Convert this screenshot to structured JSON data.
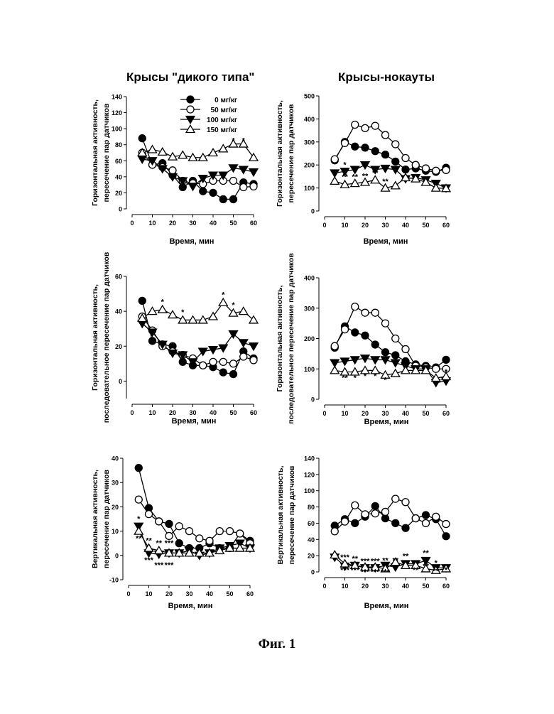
{
  "titles": {
    "left": "Крысы \"дикого типа\"",
    "right": "Крысы-нокауты"
  },
  "figure_caption": "Фиг. 1",
  "legend": [
    {
      "label": "0 мг/кг",
      "marker": "filled-circle"
    },
    {
      "label": "50 мг/кг",
      "marker": "open-circle"
    },
    {
      "label": "100 мг/кг",
      "marker": "filled-triangle-down"
    },
    {
      "label": "150 мг/кг",
      "marker": "open-triangle-up"
    }
  ],
  "chart_data": [
    {
      "id": "wt_horiz",
      "type": "line",
      "xlabel": "Время, мин",
      "ylabel": [
        "Горизонтальная активность,",
        "пересечение пар датчиков"
      ],
      "xlim": [
        0,
        60
      ],
      "ylim": [
        0,
        140
      ],
      "xticks": [
        0,
        10,
        20,
        30,
        40,
        50,
        60
      ],
      "yticks": [
        0,
        20,
        40,
        60,
        80,
        100,
        120,
        140
      ],
      "x": [
        5,
        10,
        15,
        20,
        25,
        30,
        35,
        40,
        45,
        50,
        55,
        60
      ],
      "series": [
        {
          "name": "0 мг/кг",
          "marker": "filled-circle",
          "values": [
            88,
            55,
            57,
            42,
            27,
            35,
            22,
            20,
            12,
            12,
            33,
            31
          ]
        },
        {
          "name": "50 мг/кг",
          "marker": "open-circle",
          "values": [
            70,
            55,
            52,
            48,
            35,
            32,
            31,
            35,
            35,
            35,
            27,
            28
          ]
        },
        {
          "name": "100 мг/кг",
          "marker": "filled-triangle-down",
          "values": [
            62,
            60,
            50,
            40,
            35,
            28,
            38,
            42,
            42,
            51,
            49,
            46
          ]
        },
        {
          "name": "150 мг/кг",
          "marker": "open-triangle-up",
          "values": [
            70,
            74,
            71,
            65,
            67,
            64,
            64,
            70,
            75,
            81,
            81,
            64
          ]
        }
      ],
      "annotations": [
        {
          "x": 50,
          "y": 82,
          "text": "*"
        },
        {
          "x": 55,
          "y": 82,
          "text": "*"
        }
      ]
    },
    {
      "id": "ko_horiz",
      "type": "line",
      "xlabel": "Время, мин",
      "ylabel": [
        "Горизонтальная активность,",
        "пересечение пар датчиков"
      ],
      "xlim": [
        0,
        60
      ],
      "ylim": [
        0,
        500
      ],
      "xticks": [
        0,
        10,
        20,
        30,
        40,
        50,
        60
      ],
      "yticks": [
        0,
        100,
        200,
        300,
        400,
        500
      ],
      "x": [
        5,
        10,
        15,
        20,
        25,
        30,
        35,
        40,
        45,
        50,
        55,
        60
      ],
      "series": [
        {
          "name": "0 мг/кг",
          "marker": "filled-circle",
          "values": [
            220,
            300,
            280,
            275,
            260,
            245,
            215,
            180,
            185,
            175,
            170,
            188
          ]
        },
        {
          "name": "50 мг/кг",
          "marker": "open-circle",
          "values": [
            225,
            295,
            375,
            360,
            370,
            330,
            290,
            230,
            200,
            185,
            175,
            178
          ]
        },
        {
          "name": "100 мг/кг",
          "marker": "filled-triangle-down",
          "values": [
            165,
            172,
            180,
            200,
            180,
            185,
            180,
            140,
            145,
            135,
            120,
            100
          ]
        },
        {
          "name": "150 мг/кг",
          "marker": "open-triangle-up",
          "values": [
            130,
            115,
            120,
            125,
            135,
            100,
            110,
            145,
            140,
            125,
            100,
            98
          ]
        }
      ],
      "annotations": [
        {
          "x": 10,
          "y": 190,
          "text": "*"
        },
        {
          "x": 10,
          "y": 138,
          "text": "**"
        },
        {
          "x": 15,
          "y": 138,
          "text": "**"
        },
        {
          "x": 20,
          "y": 140,
          "text": "**"
        },
        {
          "x": 25,
          "y": 155,
          "text": "**"
        },
        {
          "x": 30,
          "y": 118,
          "text": "**"
        }
      ]
    },
    {
      "id": "wt_horiz_consec",
      "type": "line",
      "xlabel": "Время, мин",
      "ylabel": [
        "Горизонтальная активность,",
        "последовательное пересечение пар датчиков"
      ],
      "xlim": [
        0,
        60
      ],
      "ylim": [
        -10,
        60
      ],
      "xticks": [
        0,
        10,
        20,
        30,
        40,
        50,
        60
      ],
      "yticks": [
        0,
        20,
        40,
        60
      ],
      "x": [
        5,
        10,
        15,
        20,
        25,
        30,
        35,
        40,
        45,
        50,
        55,
        60
      ],
      "series": [
        {
          "name": "0 мг/кг",
          "marker": "filled-circle",
          "values": [
            46,
            23,
            21,
            20,
            11,
            9,
            9,
            8,
            5,
            4,
            17,
            13
          ]
        },
        {
          "name": "50 мг/кг",
          "marker": "open-circle",
          "values": [
            37,
            29,
            20,
            17,
            15,
            13,
            9,
            11,
            11,
            10,
            14,
            12
          ]
        },
        {
          "name": "100 мг/кг",
          "marker": "filled-triangle-down",
          "values": [
            33,
            28,
            21,
            16,
            15,
            11,
            17,
            18,
            19,
            27,
            22,
            20
          ]
        },
        {
          "name": "150 мг/кг",
          "marker": "open-triangle-up",
          "values": [
            36,
            40,
            41,
            38,
            35,
            35,
            35,
            37,
            45,
            39,
            40,
            35
          ]
        }
      ],
      "annotations": [
        {
          "x": 15,
          "y": 44,
          "text": "*"
        },
        {
          "x": 25,
          "y": 38,
          "text": "*"
        },
        {
          "x": 45,
          "y": 48,
          "text": "*"
        },
        {
          "x": 50,
          "y": 42,
          "text": "*"
        }
      ]
    },
    {
      "id": "ko_horiz_consec",
      "type": "line",
      "xlabel": "Время, мин",
      "ylabel": [
        "Горизонтальная активность,",
        "последовательное пересечение пар датчиков"
      ],
      "xlim": [
        0,
        60
      ],
      "ylim": [
        0,
        400
      ],
      "xticks": [
        0,
        10,
        20,
        30,
        40,
        50,
        60
      ],
      "yticks": [
        0,
        100,
        200,
        300,
        400
      ],
      "x": [
        5,
        10,
        15,
        20,
        25,
        30,
        35,
        40,
        45,
        50,
        55,
        60
      ],
      "series": [
        {
          "name": "0 мг/кг",
          "marker": "filled-circle",
          "values": [
            170,
            240,
            220,
            210,
            180,
            155,
            145,
            125,
            115,
            110,
            105,
            130
          ]
        },
        {
          "name": "50 мг/кг",
          "marker": "open-circle",
          "values": [
            175,
            230,
            305,
            285,
            285,
            250,
            200,
            165,
            110,
            105,
            100,
            100
          ]
        },
        {
          "name": "100 мг/кг",
          "marker": "filled-triangle-down",
          "values": [
            120,
            125,
            130,
            135,
            130,
            130,
            120,
            110,
            100,
            100,
            55,
            60
          ]
        },
        {
          "name": "150 мг/кг",
          "marker": "open-triangle-up",
          "values": [
            95,
            90,
            90,
            95,
            95,
            80,
            85,
            95,
            95,
            95,
            70,
            75
          ]
        }
      ],
      "annotations": [
        {
          "x": 10,
          "y": 62,
          "text": "**"
        },
        {
          "x": 15,
          "y": 62,
          "text": "*"
        },
        {
          "x": 20,
          "y": 68,
          "text": "*"
        },
        {
          "x": 25,
          "y": 68,
          "text": "*"
        },
        {
          "x": 30,
          "y": 55,
          "text": "*"
        },
        {
          "x": 60,
          "y": 82,
          "text": "*"
        }
      ]
    },
    {
      "id": "wt_vert",
      "type": "line",
      "xlabel": "Время, мин",
      "ylabel": [
        "Вертикальная активность,",
        "пересечение пар датчиков"
      ],
      "xlim": [
        0,
        60
      ],
      "ylim": [
        -10,
        40
      ],
      "xticks": [
        0,
        10,
        20,
        30,
        40,
        50,
        60
      ],
      "yticks": [
        -10,
        0,
        10,
        20,
        30,
        40
      ],
      "x": [
        5,
        10,
        15,
        20,
        25,
        30,
        35,
        40,
        45,
        50,
        55,
        60
      ],
      "series": [
        {
          "name": "0 мг/кг",
          "marker": "filled-circle",
          "values": [
            36,
            19.5,
            14,
            13,
            5,
            3,
            3,
            5,
            3,
            3,
            9,
            6
          ]
        },
        {
          "name": "50 мг/кг",
          "marker": "open-circle",
          "values": [
            23,
            17,
            14,
            8,
            12,
            10,
            7,
            6,
            10,
            10,
            9,
            5
          ]
        },
        {
          "name": "100 мг/кг",
          "marker": "filled-triangle-down",
          "values": [
            12,
            1,
            0.5,
            1,
            1,
            2,
            0,
            1,
            3,
            4,
            5,
            3
          ]
        },
        {
          "name": "150 мг/кг",
          "marker": "open-triangle-up",
          "values": [
            10,
            3,
            2,
            1,
            1,
            1,
            1,
            1,
            2,
            3,
            3,
            3
          ]
        }
      ],
      "annotations": [
        {
          "x": 5,
          "y": 14,
          "text": "*"
        },
        {
          "x": 5,
          "y": 6,
          "text": "**"
        },
        {
          "x": 10,
          "y": 5,
          "text": "**"
        },
        {
          "x": 10,
          "y": -3,
          "text": "***"
        },
        {
          "x": 15,
          "y": 4,
          "text": "**"
        },
        {
          "x": 15,
          "y": -5,
          "text": "***"
        },
        {
          "x": 20,
          "y": 4,
          "text": "***"
        },
        {
          "x": 20,
          "y": -5,
          "text": "***"
        },
        {
          "x": 25,
          "y": 3,
          "text": "*"
        }
      ]
    },
    {
      "id": "ko_vert",
      "type": "line",
      "xlabel": "Время, мин",
      "ylabel": [
        "Вертикальная активность,",
        "пересечение пар датчиков"
      ],
      "xlim": [
        0,
        60
      ],
      "ylim": [
        0,
        140
      ],
      "xticks": [
        0,
        10,
        20,
        30,
        40,
        50,
        60
      ],
      "yticks": [
        0,
        20,
        40,
        60,
        80,
        100,
        120,
        140
      ],
      "x": [
        5,
        10,
        15,
        20,
        25,
        30,
        35,
        40,
        45,
        50,
        55,
        60
      ],
      "series": [
        {
          "name": "0 мг/кг",
          "marker": "filled-circle",
          "values": [
            57,
            65,
            60,
            68,
            81,
            66,
            60,
            54,
            66,
            70,
            65,
            44
          ]
        },
        {
          "name": "50 мг/кг",
          "marker": "open-circle",
          "values": [
            50,
            62,
            82,
            71,
            72,
            74,
            90,
            86,
            66,
            60,
            68,
            59
          ]
        },
        {
          "name": "100 мг/кг",
          "marker": "filled-triangle-down",
          "values": [
            18,
            7,
            8,
            5,
            5,
            8,
            6,
            10,
            10,
            14,
            5,
            5
          ]
        },
        {
          "name": "150 мг/кг",
          "marker": "open-triangle-up",
          "values": [
            21,
            10,
            8,
            6,
            6,
            4,
            12,
            8,
            8,
            4,
            2,
            4
          ]
        }
      ],
      "annotations": [
        {
          "x": 10,
          "y": 15,
          "text": "***"
        },
        {
          "x": 10,
          "y": -1,
          "text": "***"
        },
        {
          "x": 15,
          "y": 13,
          "text": "**"
        },
        {
          "x": 15,
          "y": -1,
          "text": "***"
        },
        {
          "x": 20,
          "y": 10,
          "text": "***"
        },
        {
          "x": 20,
          "y": -3,
          "text": "***"
        },
        {
          "x": 25,
          "y": 10,
          "text": "***"
        },
        {
          "x": 25,
          "y": -3,
          "text": "***"
        },
        {
          "x": 30,
          "y": 11,
          "text": "**"
        },
        {
          "x": 30,
          "y": -3,
          "text": "***"
        },
        {
          "x": 35,
          "y": 11,
          "text": "**"
        },
        {
          "x": 40,
          "y": 16,
          "text": "**"
        },
        {
          "x": 45,
          "y": -1,
          "text": "**"
        },
        {
          "x": 50,
          "y": 20,
          "text": "**"
        },
        {
          "x": 50,
          "y": 4,
          "text": "**"
        },
        {
          "x": 55,
          "y": 8,
          "text": "*"
        },
        {
          "x": 55,
          "y": -2,
          "text": "**"
        },
        {
          "x": 60,
          "y": -1,
          "text": "*"
        }
      ]
    }
  ]
}
